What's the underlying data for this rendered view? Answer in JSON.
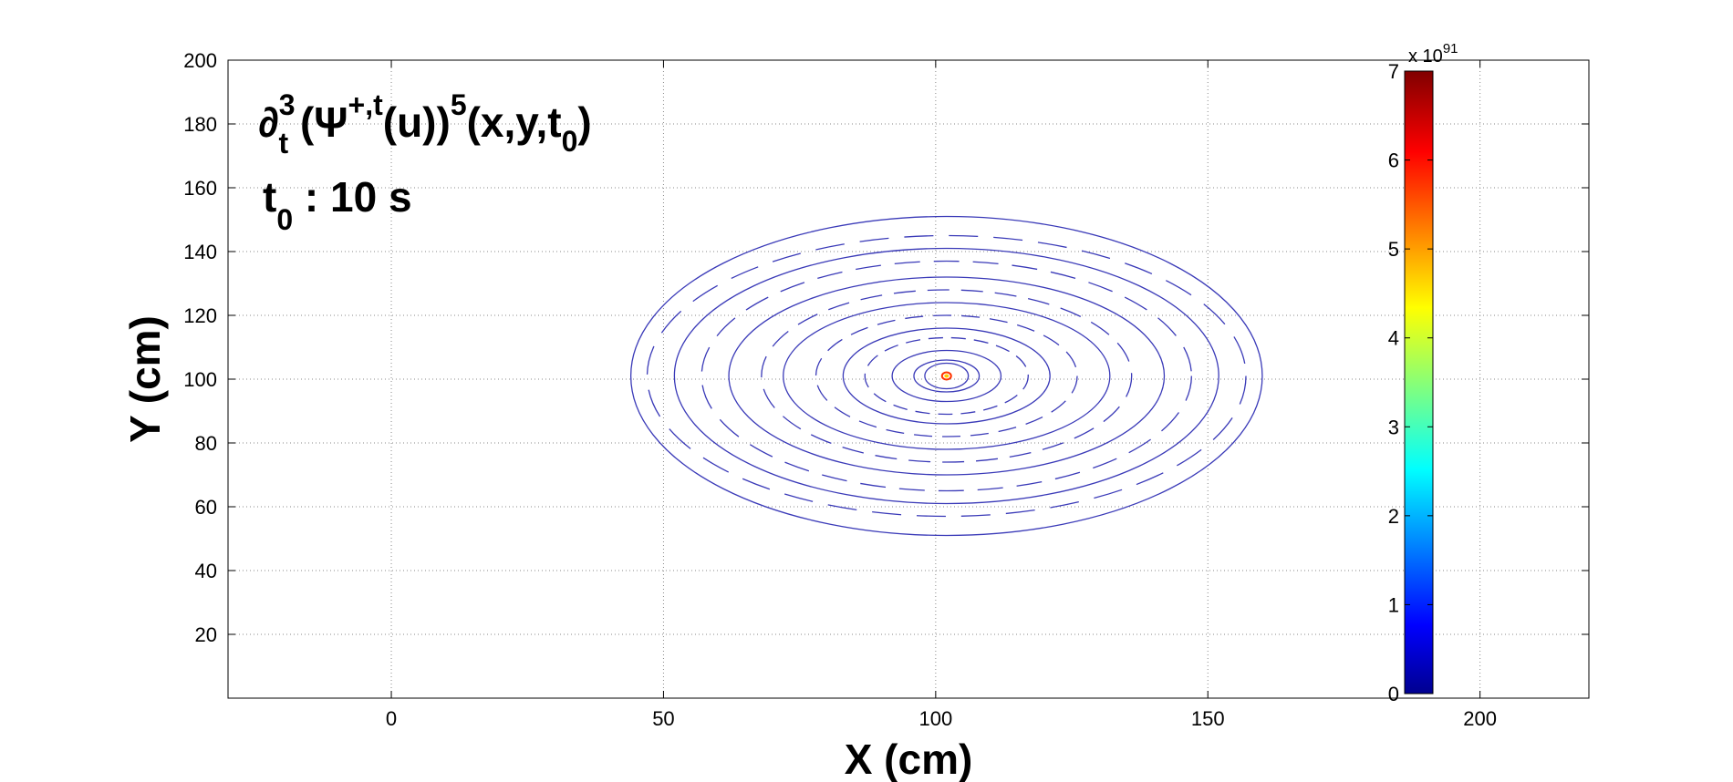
{
  "chart_data": {
    "type": "contour",
    "title_line1": {
      "op": "∂",
      "op_sup": "3",
      "op_sub": "t",
      "psi": " (Ψ",
      "psi_sup": "+,t",
      "mid": "(u))",
      "pow": "5",
      "args": "(x,y,t",
      "args_sub": "0",
      "close": ")"
    },
    "title_line2": {
      "t": "t",
      "t_sub": "0",
      "rest": " : 10 s"
    },
    "xlabel": "X (cm)",
    "ylabel": "Y (cm)",
    "xlim": [
      -30,
      220
    ],
    "ylim": [
      0,
      200
    ],
    "xticks": [
      0,
      50,
      100,
      150,
      200
    ],
    "yticks": [
      20,
      40,
      60,
      80,
      100,
      120,
      140,
      160,
      180,
      200
    ],
    "grid": true,
    "center": [
      102,
      101
    ],
    "contour_radii": [
      [
        4,
        4
      ],
      [
        6,
        5
      ],
      [
        10,
        8
      ],
      [
        15,
        12
      ],
      [
        19,
        15
      ],
      [
        24,
        19
      ],
      [
        30,
        23
      ],
      [
        34,
        27
      ],
      [
        40,
        31
      ],
      [
        45,
        36
      ],
      [
        50,
        40
      ],
      [
        55,
        44
      ],
      [
        58,
        50
      ]
    ],
    "contour_color": "#3a3ab8",
    "hotspot_colors": [
      "#ff3300",
      "#ffcc00"
    ],
    "colorbar": {
      "min": 0,
      "max": 7,
      "ticks": [
        0,
        1,
        2,
        3,
        4,
        5,
        6,
        7
      ],
      "multiplier_base": "x 10",
      "multiplier_exp": "91",
      "colormap": "jet"
    }
  }
}
